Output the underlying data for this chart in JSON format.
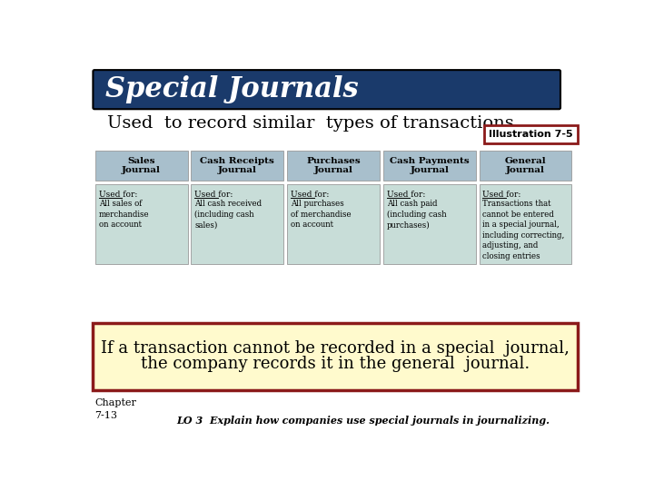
{
  "bg_color": "#ffffff",
  "title_bar_color": "#1a3a6b",
  "title_text": "Special Journals",
  "title_text_color": "#ffffff",
  "subtitle_text": "Used  to record similar  types of transactions.",
  "subtitle_color": "#000000",
  "illus_text": "Illustration 7-5",
  "illus_border_color": "#8b1a1a",
  "illus_bg": "#ffffff",
  "header_bg": "#a8bfcc",
  "body_bg": "#c8ddd8",
  "journals": [
    {
      "title": "Sales\nJournal",
      "used_for": "All sales of\nmerchandise\non account"
    },
    {
      "title": "Cash Receipts\nJournal",
      "used_for": "All cash received\n(including cash\nsales)"
    },
    {
      "title": "Purchases\nJournal",
      "used_for": "All purchases\nof merchandise\non account"
    },
    {
      "title": "Cash Payments\nJournal",
      "used_for": "All cash paid\n(including cash\npurchases)"
    },
    {
      "title": "General\nJournal",
      "used_for": "Transactions that\ncannot be entered\nin a special journal,\nincluding correcting,\nadjusting, and\nclosing entries"
    }
  ],
  "bottom_box_bg": "#fffacd",
  "bottom_box_border": "#8b1a1a",
  "bottom_text_line1": "If a transaction cannot be recorded in a special  journal,",
  "bottom_text_line2": "the company records it in the general  journal.",
  "chapter_text": "Chapter\n7-13",
  "lo_text": "LO 3  Explain how companies use special journals in journalizing."
}
